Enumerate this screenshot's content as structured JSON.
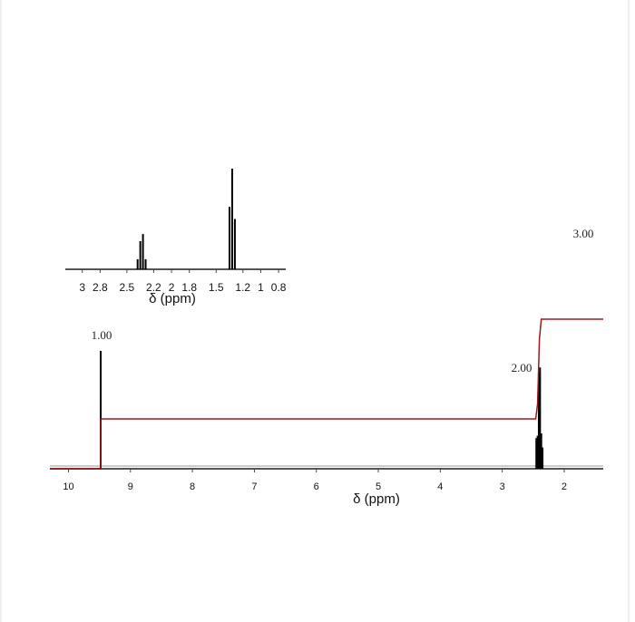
{
  "chart_data": [
    {
      "type": "spectrum",
      "xlabel": "δ (ppm)",
      "xlim": [
        10.3,
        1.37
      ],
      "xticks": [
        10,
        9,
        8,
        7,
        6,
        5,
        4,
        3,
        2
      ],
      "ylim": [
        0,
        1
      ],
      "color": "#000000",
      "x": [
        9.48,
        2.45,
        2.43,
        2.41,
        2.39,
        2.37,
        2.35
      ],
      "values": [
        1.0,
        0.26,
        0.28,
        0.82,
        0.86,
        0.3,
        0.18
      ],
      "integral": {
        "color": "#a01818",
        "ylim": [
          0,
          3.2
        ],
        "x": [
          10.3,
          9.48,
          9.48,
          2.46,
          2.43,
          2.4,
          2.37,
          1.37
        ],
        "values": [
          0,
          0,
          1,
          1,
          1.3,
          2.6,
          3,
          3
        ]
      },
      "integral_labels": [
        "1.00",
        "2.00",
        "3.00"
      ]
    },
    {
      "type": "spectrum",
      "xlabel": "δ (ppm)",
      "xlim": [
        3.19,
        0.72
      ],
      "xticks": [
        3,
        2.8,
        2.5,
        2.2,
        2,
        1.8,
        1.5,
        1.2,
        1,
        0.8
      ],
      "ylim": [
        0,
        1
      ],
      "color": "#000000",
      "x": [
        2.38,
        2.35,
        2.32,
        2.29,
        1.35,
        1.32,
        1.29
      ],
      "values": [
        0.1,
        0.28,
        0.35,
        0.1,
        0.62,
        1.0,
        0.5
      ]
    }
  ]
}
